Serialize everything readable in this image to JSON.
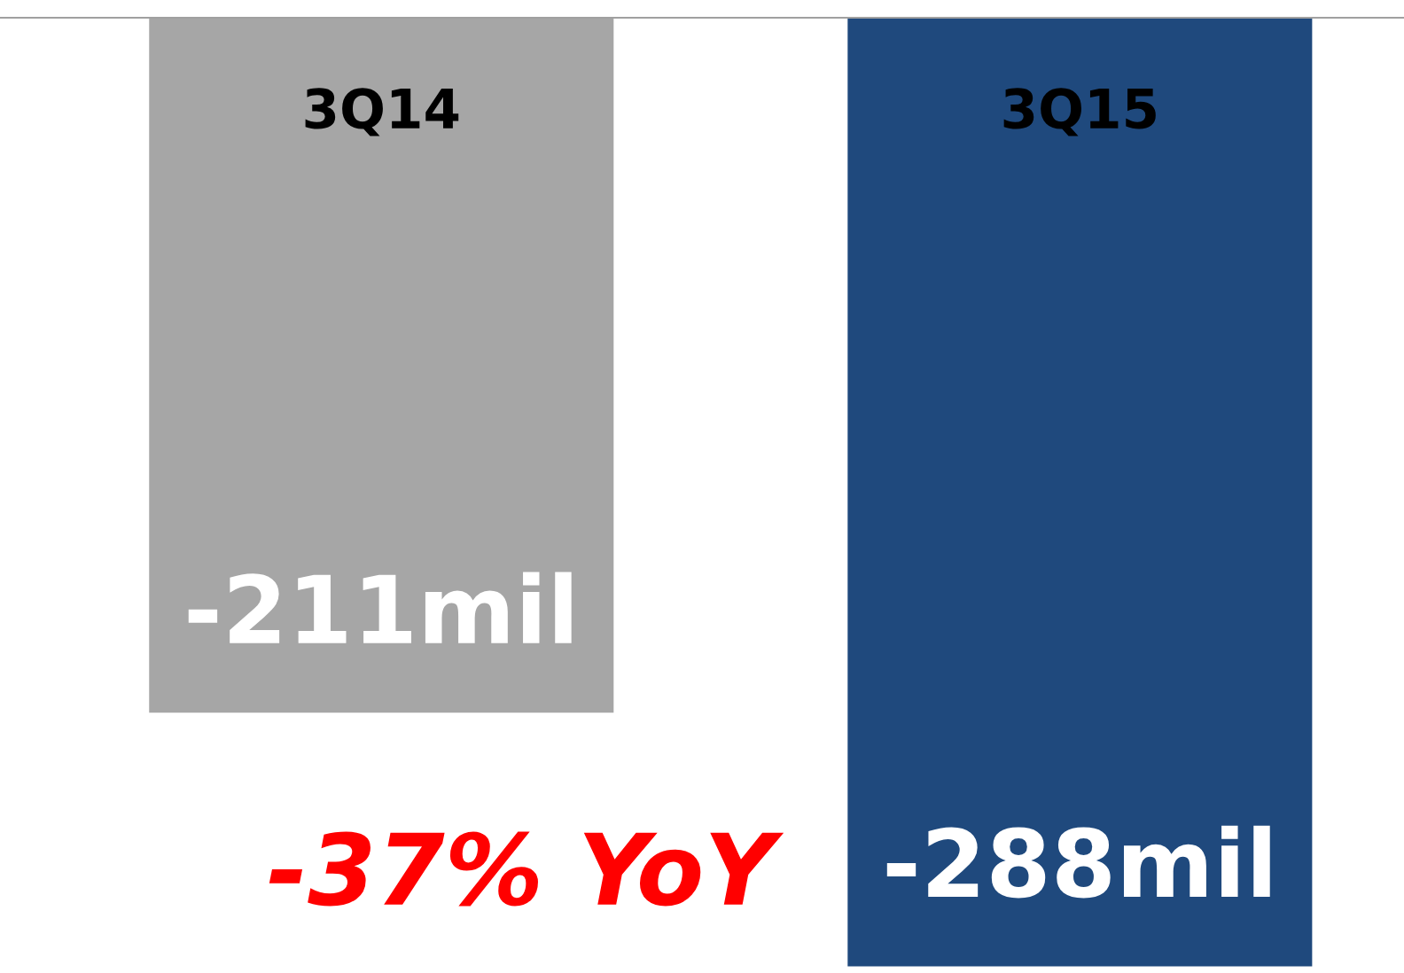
{
  "chart_data": {
    "type": "bar",
    "categories": [
      "3Q14",
      "3Q15"
    ],
    "values": [
      -211,
      -288
    ],
    "colors": [
      "#a6a6a6",
      "#1f497d"
    ],
    "value_labels": [
      "-211mil",
      "-288mil"
    ],
    "ylim": [
      -290,
      0
    ],
    "annotations": [
      "-37% YoY"
    ]
  }
}
